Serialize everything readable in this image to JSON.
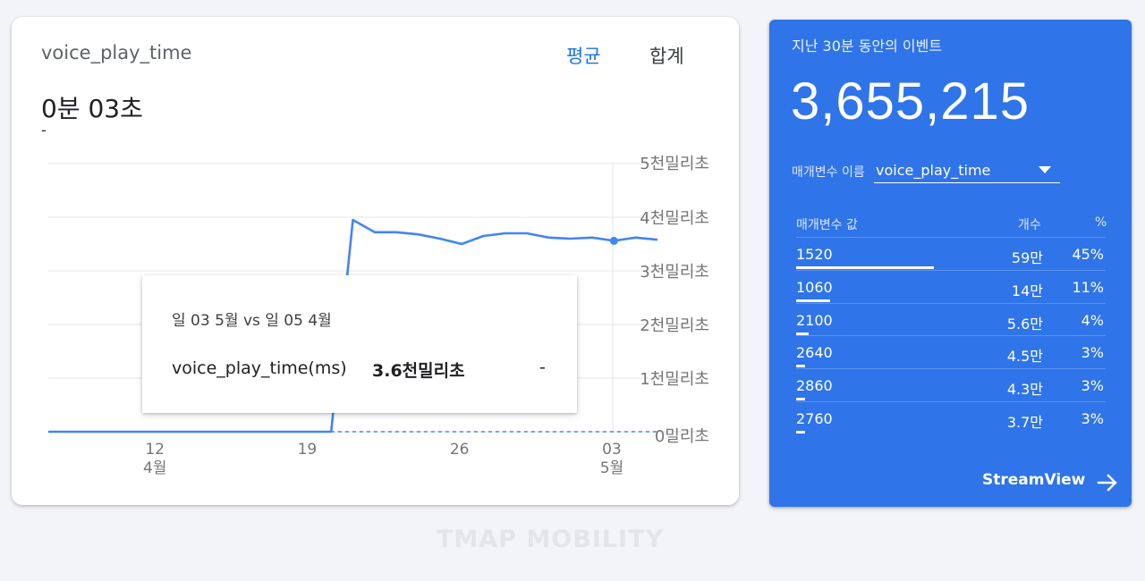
{
  "left_card": {
    "metric_title": "voice_play_time",
    "tab_avg": "평균",
    "tab_sum": "합계",
    "value": "0분 03초",
    "sub": "-"
  },
  "chart_data": {
    "type": "line",
    "y_tick_labels": [
      "5천밀리초",
      "4천밀리초",
      "3천밀리초",
      "2천밀리초",
      "1천밀리초",
      "0밀리초"
    ],
    "y_ticks": [
      5000,
      4000,
      3000,
      2000,
      1000,
      0
    ],
    "ylim": [
      0,
      5000
    ],
    "x_ticks": [
      {
        "day": "12",
        "month": "4월",
        "x": 4.9
      },
      {
        "day": "19",
        "month": "",
        "x": 11.9
      },
      {
        "day": "26",
        "month": "",
        "x": 18.9
      },
      {
        "day": "03",
        "month": "5월",
        "x": 25.9
      }
    ],
    "xlim": [
      0,
      28.5
    ],
    "series": [
      {
        "name": "current",
        "style": "solid",
        "points": [
          [
            0,
            0
          ],
          [
            12,
            0
          ],
          [
            13,
            0
          ],
          [
            14,
            3950
          ],
          [
            15,
            3720
          ],
          [
            16,
            3720
          ],
          [
            17,
            3680
          ],
          [
            18,
            3600
          ],
          [
            19,
            3500
          ],
          [
            20,
            3650
          ],
          [
            21,
            3700
          ],
          [
            22,
            3700
          ],
          [
            23,
            3620
          ],
          [
            24,
            3600
          ],
          [
            25,
            3620
          ],
          [
            26,
            3560
          ],
          [
            27,
            3620
          ],
          [
            28,
            3580
          ]
        ]
      },
      {
        "name": "previous",
        "style": "dashed",
        "points": [
          [
            12,
            0
          ],
          [
            28,
            0
          ]
        ]
      }
    ],
    "hover_x": 26,
    "grid": true
  },
  "tooltip": {
    "date": "일 03 5월 vs 일 05 4월",
    "metric": "voice_play_time(ms)",
    "value": "3.6천밀리초",
    "compare": "-"
  },
  "watermark": "TMAP MOBILITY",
  "right_card": {
    "events_label": "지난 30분 동안의 이벤트",
    "events_count": "3,655,215",
    "param_label": "매개변수 이름",
    "param_value": "voice_play_time",
    "col_name": "매개변수 값",
    "col_count": "개수",
    "col_pct": "%",
    "rows": [
      {
        "name": "1520",
        "count": "59만",
        "pct": "45%",
        "share": 0.45
      },
      {
        "name": "1060",
        "count": "14만",
        "pct": "11%",
        "share": 0.11
      },
      {
        "name": "2100",
        "count": "5.6만",
        "pct": "4%",
        "share": 0.04
      },
      {
        "name": "2640",
        "count": "4.5만",
        "pct": "3%",
        "share": 0.03
      },
      {
        "name": "2860",
        "count": "4.3만",
        "pct": "3%",
        "share": 0.03
      },
      {
        "name": "2760",
        "count": "3.7만",
        "pct": "3%",
        "share": 0.03
      }
    ],
    "streamview_label": "StreamView",
    "accent": "#2f74e8"
  }
}
